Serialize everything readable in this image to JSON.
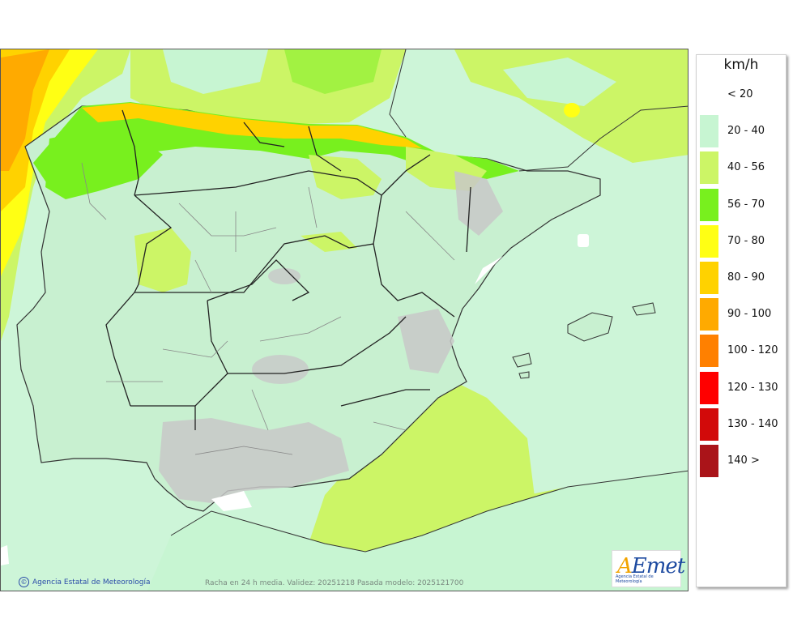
{
  "legend": {
    "unit": "km/h",
    "items": [
      {
        "label": "< 20",
        "color": "#ffffff"
      },
      {
        "label": "20 - 40",
        "color": "#c7f5d2"
      },
      {
        "label": "40 - 56",
        "color": "#ccf566"
      },
      {
        "label": "56 - 70",
        "color": "#78f01e"
      },
      {
        "label": "70 - 80",
        "color": "#ffff14"
      },
      {
        "label": "80 - 90",
        "color": "#ffd200"
      },
      {
        "label": "90 - 100",
        "color": "#ffaa00"
      },
      {
        "label": "100 - 120",
        "color": "#ff8000"
      },
      {
        "label": "120 - 130",
        "color": "#ff0000"
      },
      {
        "label": "130 - 140",
        "color": "#d20a0a"
      },
      {
        "label": "140 >",
        "color": "#aa1419"
      }
    ]
  },
  "footer": {
    "credit": "Agencia Estatal de Meteorología",
    "validity": "Racha en 24 h media. Validez: 20251218 Pasada modelo: 2025121700"
  },
  "logo": {
    "wordmark_a": "A",
    "wordmark_rest": "Emet",
    "subtitle": "Agencia Estatal de Meteorología"
  },
  "colors": {
    "sea": "#cdf5d8",
    "land": "#c8f0d0",
    "relief": "#c3c3c3",
    "coast": "#333333"
  }
}
